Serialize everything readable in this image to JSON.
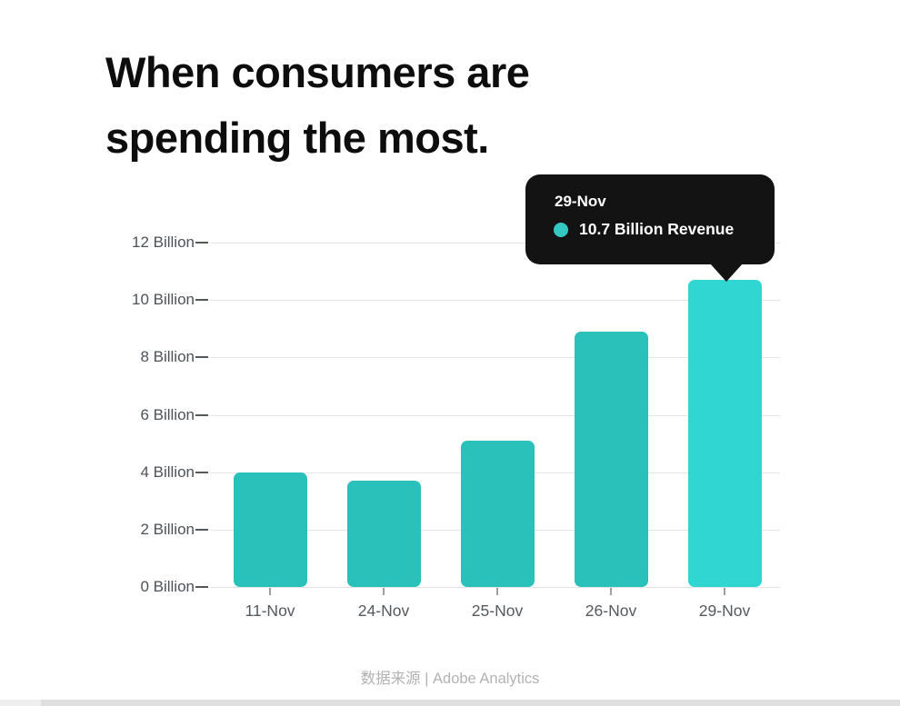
{
  "title": {
    "line1": "When consumers are",
    "line2": "spending the most."
  },
  "chart_data": {
    "type": "bar",
    "title": "When consumers are spending the most.",
    "categories": [
      "11-Nov",
      "24-Nov",
      "25-Nov",
      "26-Nov",
      "29-Nov"
    ],
    "values": [
      4.0,
      3.7,
      5.1,
      8.9,
      10.7
    ],
    "unit": "Billion",
    "xlabel": "",
    "ylabel": "",
    "ylim": [
      0,
      12
    ],
    "ytick_step": 2,
    "ytick_labels": [
      "0 Billion",
      "2 Billion",
      "4 Billion",
      "6 Billion",
      "8 Billion",
      "10 Billion",
      "12 Billion"
    ],
    "grid": true,
    "legend_position": "none",
    "highlight_index": 4
  },
  "colors": {
    "bar": "#2bc1bb",
    "bar_highlight": "#30d6d1",
    "tooltip_bg": "#131313",
    "tooltip_dot": "#35c8c3"
  },
  "tooltip": {
    "date": "29-Nov",
    "value_label": "10.7 Billion Revenue"
  },
  "footer": {
    "source": "数据来源 | Adobe Analytics"
  }
}
